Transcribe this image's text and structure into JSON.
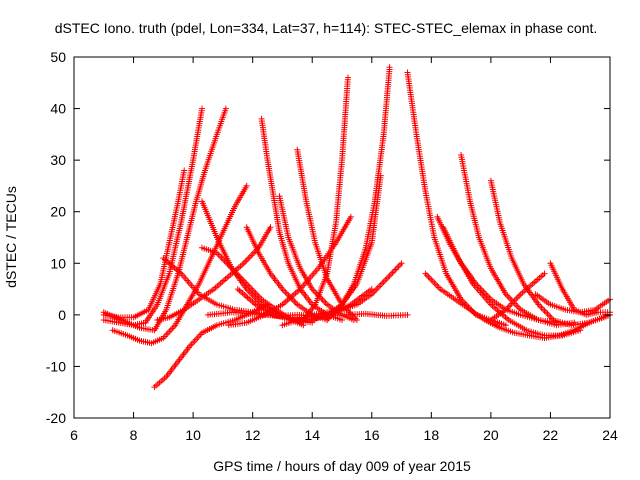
{
  "chart_data": {
    "type": "scatter",
    "title": "dSTEC Iono. truth (pdel, Lon=334, Lat=37, h=114): STEC-STEC_elemax in phase cont.",
    "xlabel": "GPS time / hours of day 009 of year 2015",
    "ylabel": "dSTEC  / TECUs",
    "xlim": [
      6,
      24
    ],
    "ylim": [
      -20,
      50
    ],
    "xticks": [
      6,
      8,
      10,
      12,
      14,
      16,
      18,
      20,
      22,
      24
    ],
    "yticks": [
      -20,
      -10,
      0,
      10,
      20,
      30,
      40,
      50
    ],
    "xtick_labels": [
      "6",
      "8",
      "10",
      "12",
      "14",
      "16",
      "18",
      "20",
      "22",
      "24"
    ],
    "ytick_labels": [
      "-20",
      "-10",
      "0",
      "10",
      "20",
      "30",
      "40",
      "50"
    ],
    "grid": false,
    "marker": "+",
    "color": "#ff0000",
    "series": [
      {
        "x": [
          7.0,
          7.5,
          8.0,
          8.4,
          8.8,
          9.2,
          9.6,
          10.0,
          10.3
        ],
        "y": [
          -1,
          -1.5,
          -2,
          -1.5,
          2,
          8,
          18,
          30,
          40
        ]
      },
      {
        "x": [
          7.0,
          7.6,
          8.2,
          8.7,
          9.1,
          9.5,
          9.8,
          10.1,
          10.4,
          10.8,
          11.1
        ],
        "y": [
          0.5,
          -1,
          -2.5,
          -3,
          1,
          8,
          15,
          22,
          28,
          35,
          40
        ]
      },
      {
        "x": [
          7.0,
          7.5,
          8.0,
          8.5,
          8.9,
          9.2,
          9.5,
          9.7
        ],
        "y": [
          0,
          -0.5,
          -0.5,
          1,
          6,
          14,
          22,
          28
        ]
      },
      {
        "x": [
          7.3,
          7.8,
          8.2,
          8.6,
          9.0,
          9.4,
          9.8,
          10.2,
          10.6,
          11.0,
          11.4,
          11.8
        ],
        "y": [
          -3,
          -4,
          -5,
          -5.5,
          -4.5,
          -2,
          2,
          6,
          11,
          16,
          21,
          25
        ]
      },
      {
        "x": [
          8.7,
          9.1,
          9.5,
          9.9,
          10.3,
          10.8,
          11.4,
          12.0,
          12.5
        ],
        "y": [
          -14,
          -12,
          -9,
          -6,
          -3.5,
          -2,
          -1,
          0.5,
          2
        ]
      },
      {
        "x": [
          8.8,
          9.2,
          9.7,
          10.2,
          10.7,
          11.2,
          11.7,
          12.2,
          12.6
        ],
        "y": [
          -1,
          -0.5,
          1,
          3,
          5,
          7.5,
          10,
          13,
          17
        ]
      },
      {
        "x": [
          9.0,
          9.6,
          10.2,
          10.8,
          11.4,
          12.0,
          12.6,
          13.2,
          13.7
        ],
        "y": [
          11,
          8,
          4,
          2,
          1,
          0.5,
          0,
          -0.5,
          -1
        ]
      },
      {
        "x": [
          10.3,
          10.8,
          11.3,
          11.8,
          12.3,
          12.9,
          13.5,
          14.0
        ],
        "y": [
          22,
          15,
          9,
          5,
          2,
          0,
          -1,
          -1.5
        ]
      },
      {
        "x": [
          10.3,
          10.8,
          11.3,
          11.8,
          12.3,
          12.8,
          13.3,
          13.7
        ],
        "y": [
          13,
          12,
          9,
          6,
          3,
          1,
          -1,
          -2
        ]
      },
      {
        "x": [
          11.2,
          11.8,
          12.4,
          13.0,
          13.6,
          14.2,
          14.8,
          15.3
        ],
        "y": [
          -2,
          -1.5,
          0,
          2,
          5,
          9,
          14,
          19
        ]
      },
      {
        "x": [
          11.5,
          12.1,
          12.7,
          13.3,
          13.9,
          14.6,
          15.3,
          16.0
        ],
        "y": [
          5,
          2,
          0,
          -1,
          -1,
          0,
          2,
          5
        ]
      },
      {
        "x": [
          11.8,
          12.2,
          12.6,
          13.0,
          13.5,
          14.0,
          14.5
        ],
        "y": [
          17,
          12,
          8,
          5,
          2,
          0,
          -1
        ]
      },
      {
        "x": [
          12.3,
          12.5,
          12.7,
          12.9,
          13.2,
          13.6,
          14.0,
          14.5,
          15.0
        ],
        "y": [
          38,
          30,
          23,
          16,
          10,
          5,
          2,
          0,
          -1
        ]
      },
      {
        "x": [
          12.9,
          13.2,
          13.6,
          14.0,
          14.5,
          15.0,
          15.4
        ],
        "y": [
          23,
          15,
          9,
          5,
          2,
          0,
          -1
        ]
      },
      {
        "x": [
          13.5,
          13.8,
          14.1,
          14.5,
          15.0,
          15.5
        ],
        "y": [
          32,
          22,
          14,
          7,
          2,
          -1
        ]
      },
      {
        "x": [
          13.0,
          13.5,
          14.0,
          14.5,
          15.0,
          15.5,
          16.0,
          16.5,
          17.0
        ],
        "y": [
          -2,
          -1,
          0,
          0.5,
          1,
          2,
          4,
          7,
          10
        ]
      },
      {
        "x": [
          13.7,
          14.1,
          14.5,
          14.8,
          15.0,
          15.2
        ],
        "y": [
          -1,
          2,
          8,
          18,
          30,
          46
        ]
      },
      {
        "x": [
          14.5,
          15.0,
          15.4,
          15.8,
          16.1,
          16.4,
          16.6
        ],
        "y": [
          -1,
          2,
          6,
          13,
          22,
          35,
          48
        ]
      },
      {
        "x": [
          14.0,
          14.5,
          15.0,
          15.5,
          16.0,
          16.3
        ],
        "y": [
          -1,
          0,
          2,
          6,
          14,
          27
        ]
      },
      {
        "x": [
          10.5,
          11.3,
          12.0,
          12.8,
          13.5,
          14.2,
          15.0,
          15.8,
          16.5,
          17.2
        ],
        "y": [
          0,
          0.5,
          0.2,
          -0.2,
          0,
          -0.3,
          0,
          0.2,
          -0.2,
          0
        ]
      },
      {
        "x": [
          17.2,
          17.5,
          17.8,
          18.1,
          18.5,
          19.0,
          19.5,
          20.0,
          20.5
        ],
        "y": [
          47,
          35,
          24,
          15,
          8,
          3,
          0,
          -1,
          -2
        ]
      },
      {
        "x": [
          18.2,
          18.6,
          19.0,
          19.5,
          20.0,
          20.5,
          21.0,
          21.6,
          22.2
        ],
        "y": [
          19,
          14,
          10,
          6,
          3,
          1,
          0,
          -1,
          -1.5
        ]
      },
      {
        "x": [
          18.4,
          18.9,
          19.4,
          20.0,
          20.6,
          21.2,
          21.8,
          22.4,
          23.0
        ],
        "y": [
          17,
          11,
          6,
          2,
          -1,
          -3,
          -4,
          -4,
          -3
        ]
      },
      {
        "x": [
          19.0,
          19.3,
          19.6,
          20.0,
          20.5,
          21.0,
          21.6,
          22.2,
          22.8
        ],
        "y": [
          31,
          22,
          15,
          9,
          4,
          1,
          -1,
          -2,
          -1.5
        ]
      },
      {
        "x": [
          20.0,
          20.3,
          20.7,
          21.1,
          21.6,
          22.1,
          22.7,
          23.3,
          24.0
        ],
        "y": [
          26,
          18,
          11,
          6,
          2,
          -1,
          -2,
          -1.5,
          0
        ]
      },
      {
        "x": [
          17.8,
          18.3,
          18.8,
          19.3,
          19.8,
          20.3,
          20.8,
          21.3,
          21.8,
          22.3,
          22.8,
          23.3,
          24.0
        ],
        "y": [
          8,
          5,
          3,
          1,
          -1,
          -2.5,
          -3.5,
          -4,
          -4.5,
          -4,
          -3,
          -1.5,
          0
        ]
      },
      {
        "x": [
          20.0,
          20.5,
          21.0,
          21.4,
          21.8
        ],
        "y": [
          -1,
          1,
          4,
          6,
          8
        ]
      },
      {
        "x": [
          22.0,
          22.4,
          22.8,
          23.2,
          23.6,
          24.0
        ],
        "y": [
          10,
          5,
          1,
          0,
          0.5,
          0.5
        ]
      },
      {
        "x": [
          21.5,
          22.0,
          22.5,
          23.0,
          23.5,
          24.0
        ],
        "y": [
          4,
          2,
          1,
          0.5,
          1,
          3
        ]
      }
    ]
  }
}
